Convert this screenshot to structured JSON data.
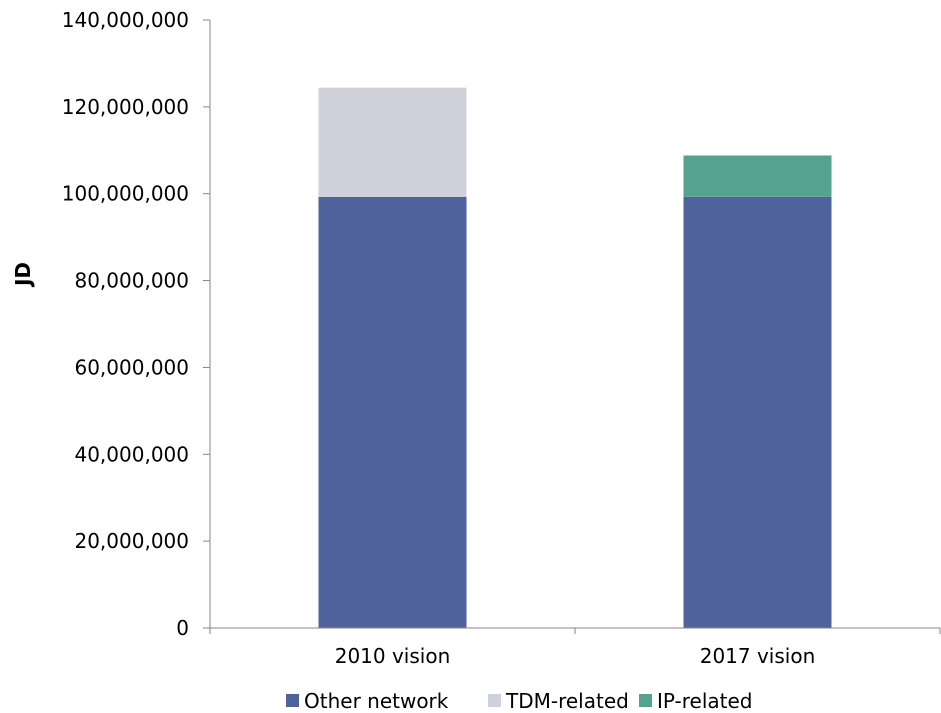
{
  "chart_data": {
    "type": "bar",
    "stacked": true,
    "categories": [
      "2010 vision",
      "2017 vision"
    ],
    "series": [
      {
        "name": "Other network",
        "values": [
          99300000,
          99300000
        ],
        "color": "#50629c"
      },
      {
        "name": "TDM-related",
        "values": [
          25100000,
          0
        ],
        "color": "#d1d1dc"
      },
      {
        "name": "IP-related",
        "values": [
          0,
          9500000
        ],
        "color": "#55a28e"
      }
    ],
    "title": "",
    "xlabel": "",
    "ylabel": "JD",
    "ylim": [
      0,
      140000000
    ],
    "yticks": [
      0,
      20000000,
      40000000,
      60000000,
      80000000,
      100000000,
      120000000,
      140000000
    ],
    "ytick_labels": [
      "0",
      "20,000,000",
      "40,000,000",
      "60,000,000",
      "80,000,000",
      "100,000,000",
      "120,000,000",
      "140,000,000"
    ],
    "grid": false,
    "legend_position": "bottom"
  }
}
